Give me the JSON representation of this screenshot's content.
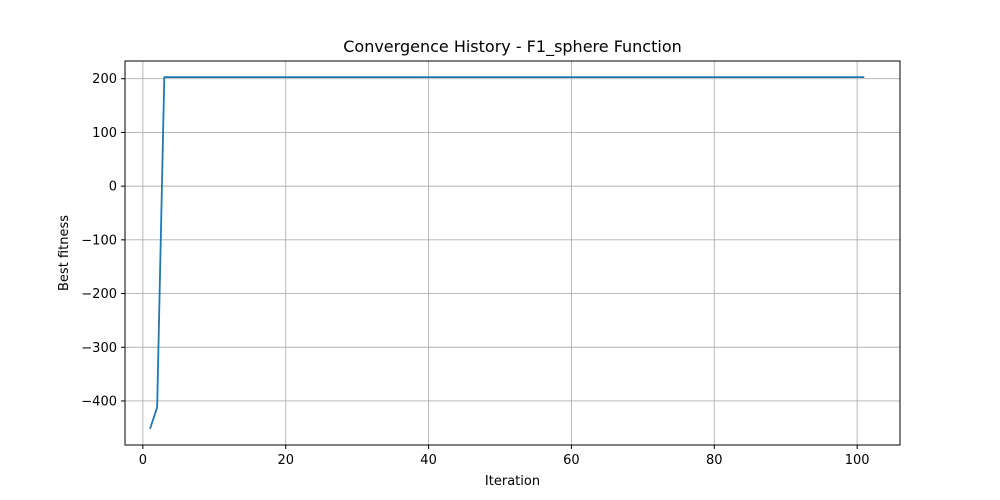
{
  "chart_data": {
    "type": "line",
    "title": "Convergence History - F1_sphere Function",
    "xlabel": "Iteration",
    "ylabel": "Best fitness",
    "xlim": [
      -2.5,
      106
    ],
    "ylim": [
      -482,
      233
    ],
    "x_ticks": [
      0,
      20,
      40,
      60,
      80,
      100
    ],
    "y_ticks": [
      -400,
      -300,
      -200,
      -100,
      0,
      100,
      200
    ],
    "grid": true,
    "legend": "none",
    "series": [
      {
        "color": "#1f77b4",
        "x": [
          1,
          2,
          3,
          4,
          5,
          10,
          20,
          30,
          40,
          50,
          60,
          70,
          80,
          90,
          100,
          101
        ],
        "y": [
          -452,
          -412,
          203,
          203,
          203,
          203,
          203,
          203,
          203,
          203,
          203,
          203,
          203,
          203,
          203,
          203
        ]
      }
    ]
  }
}
